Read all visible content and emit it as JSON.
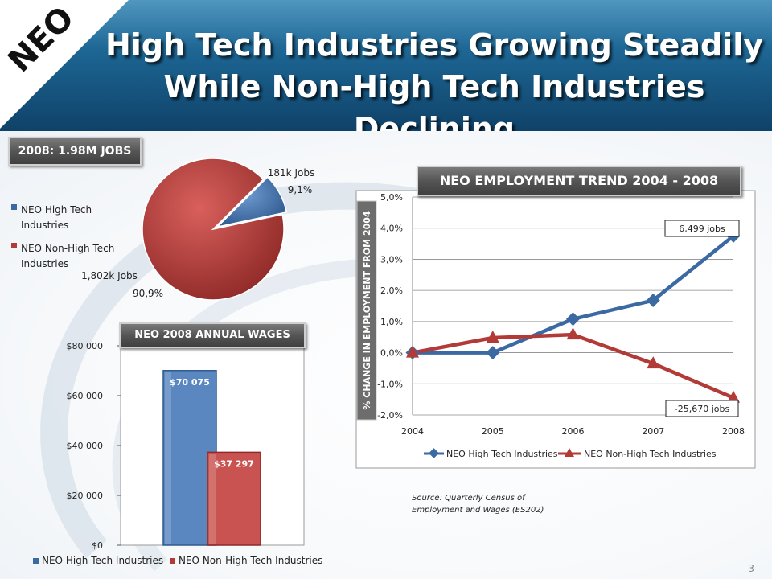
{
  "header": {
    "logo_text": "NEO",
    "title_line1": "High Tech Industries Growing Steadily",
    "title_line2": "While Non-High Tech Industries Declining"
  },
  "pie_section": {
    "label": "2008: 1.98M JOBS",
    "legend": [
      "NEO High Tech Industries",
      "NEO Non-High Tech Industries"
    ]
  },
  "wages_section": {
    "label": "NEO 2008 ANNUAL WAGES"
  },
  "trend_section": {
    "label": "NEO EMPLOYMENT TREND 2004 - 2008"
  },
  "source": {
    "line1": "Source:  Quarterly Census of",
    "line2": "Employment and Wages (ES202)"
  },
  "page_number": "3",
  "colors": {
    "high_tech": "#3b6aa3",
    "non_high_tech": "#b23a37",
    "header": "#1a5f8c"
  },
  "chart_data": [
    {
      "type": "pie",
      "title": "2008: 1.98M JOBS",
      "categories": [
        "NEO High Tech Industries",
        "NEO Non-High Tech Industries"
      ],
      "values": [
        9.1,
        90.9
      ],
      "value_labels": [
        "181k Jobs",
        "1,802k Jobs"
      ],
      "percent_labels": [
        "9,1%",
        "90,9%"
      ],
      "legend": "left"
    },
    {
      "type": "bar",
      "title": "NEO 2008 ANNUAL WAGES",
      "categories": [
        "NEO High Tech Industries",
        "NEO Non-High Tech Industries"
      ],
      "values": [
        70075,
        37297
      ],
      "data_labels": [
        "$70 075",
        "$37 297"
      ],
      "ylim": [
        0,
        80000
      ],
      "yticks": [
        0,
        20000,
        40000,
        60000,
        80000
      ],
      "ytick_labels": [
        "$0",
        "$20 000",
        "$40 000",
        "$60 000",
        "$80 000"
      ],
      "legend": "bottom"
    },
    {
      "type": "line",
      "title": "NEO EMPLOYMENT TREND 2004 - 2008",
      "ylabel": "% CHANGE IN EMPLOYMENT FROM 2004",
      "x": [
        "2004",
        "2005",
        "2006",
        "2007",
        "2008"
      ],
      "series": [
        {
          "name": "NEO High Tech Industries",
          "values": [
            0.0,
            0.0,
            1.08,
            1.68,
            3.75
          ]
        },
        {
          "name": "NEO Non-High Tech Industries",
          "values": [
            0.0,
            0.48,
            0.58,
            -0.35,
            -1.45
          ]
        }
      ],
      "ylim": [
        -2.0,
        5.0
      ],
      "yticks": [
        -2,
        -1,
        0,
        1,
        2,
        3,
        4,
        5
      ],
      "ytick_labels": [
        "-2,0%",
        "-1,0%",
        "0,0%",
        "1,0%",
        "2,0%",
        "3,0%",
        "4,0%",
        "5,0%"
      ],
      "annotations": [
        "6,499 jobs",
        "-25,670 jobs"
      ],
      "grid": true,
      "legend": "bottom"
    }
  ]
}
